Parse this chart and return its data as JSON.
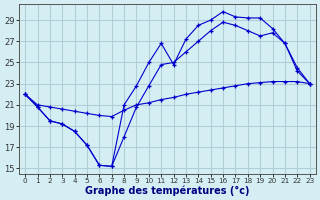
{
  "background_color": "#d4eef4",
  "grid_color": "#b0cdd8",
  "line_color": "#0000cc",
  "xlim": [
    -0.5,
    23.5
  ],
  "ylim": [
    14.5,
    30.5
  ],
  "yticks": [
    15,
    17,
    19,
    21,
    23,
    25,
    27,
    29
  ],
  "xticks": [
    0,
    1,
    2,
    3,
    4,
    5,
    6,
    7,
    8,
    9,
    10,
    11,
    12,
    13,
    14,
    15,
    16,
    17,
    18,
    19,
    20,
    21,
    22,
    23
  ],
  "xtick_labels": [
    "0",
    "1",
    "2",
    "3",
    "4",
    "5",
    "6",
    "7",
    "8",
    "9",
    "10",
    "11",
    "12",
    "13",
    "14",
    "15",
    "16",
    "17",
    "18",
    "19",
    "20",
    "21",
    "22",
    "23"
  ],
  "xlabel": "Graphe des températures (°c)",
  "s1x": [
    0,
    1,
    2,
    3,
    4,
    5,
    6,
    7,
    8,
    9,
    10,
    11,
    12,
    13,
    14,
    15,
    16,
    17,
    18,
    19,
    20,
    21,
    22,
    23
  ],
  "s1y": [
    22.0,
    21.0,
    20.8,
    20.6,
    20.4,
    20.2,
    20.0,
    19.9,
    20.5,
    21.0,
    21.2,
    21.5,
    21.7,
    22.0,
    22.2,
    22.4,
    22.6,
    22.8,
    23.0,
    23.1,
    23.2,
    23.2,
    23.2,
    23.0
  ],
  "s2x": [
    0,
    1,
    2,
    3,
    4,
    5,
    6,
    7,
    8,
    9,
    10,
    11,
    12,
    13,
    14,
    15,
    16,
    17,
    18,
    19,
    20,
    21,
    22,
    23
  ],
  "s2y": [
    22.0,
    20.8,
    19.5,
    19.2,
    18.5,
    17.2,
    15.3,
    15.2,
    18.0,
    20.8,
    22.8,
    24.8,
    25.0,
    26.0,
    27.0,
    28.0,
    28.8,
    28.5,
    28.0,
    27.5,
    27.8,
    26.8,
    24.2,
    23.0
  ],
  "s3x": [
    0,
    1,
    2,
    3,
    4,
    5,
    6,
    7,
    8,
    9,
    10,
    11,
    12,
    13,
    14,
    15,
    16,
    17,
    18,
    19,
    20,
    21,
    22,
    23
  ],
  "s3y": [
    22.0,
    20.8,
    19.5,
    19.2,
    18.5,
    17.2,
    15.3,
    15.2,
    21.0,
    22.8,
    25.0,
    26.8,
    24.8,
    27.2,
    28.5,
    29.0,
    29.8,
    29.3,
    29.2,
    29.2,
    28.2,
    26.8,
    24.5,
    23.0
  ]
}
